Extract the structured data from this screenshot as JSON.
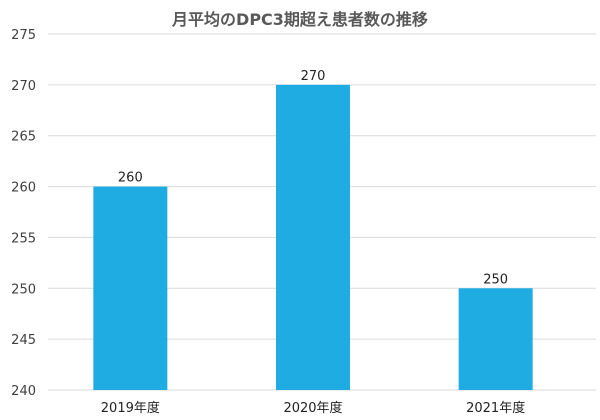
{
  "chart_data": {
    "type": "bar",
    "title": "月平均のDPC3期超え患者数の推移",
    "xlabel": "",
    "ylabel": "",
    "categories": [
      "2019年度",
      "2020年度",
      "2021年度"
    ],
    "values": [
      260,
      270,
      250
    ],
    "data_labels": [
      "260",
      "270",
      "250"
    ],
    "ylim": [
      240,
      275
    ],
    "yticks": [
      240,
      245,
      250,
      255,
      260,
      265,
      270,
      275
    ],
    "grid": true,
    "legend": "none",
    "colors": {
      "bar": "#1FACE3",
      "grid": "#D9D9D9",
      "title": "#595959"
    }
  }
}
